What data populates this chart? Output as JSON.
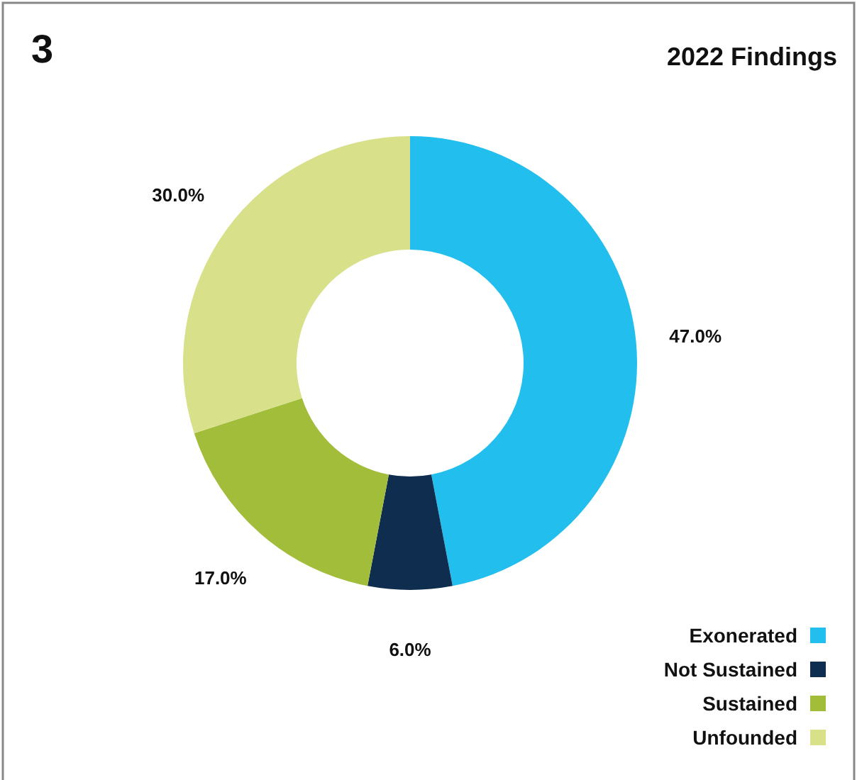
{
  "chart_data": {
    "type": "donut",
    "title": "2022 Findings",
    "annotations": [
      "3"
    ],
    "categories": [
      "Exonerated",
      "Not Sustained",
      "Sustained",
      "Unfounded"
    ],
    "values": [
      47.0,
      6.0,
      17.0,
      30.0
    ],
    "colors": [
      "#22bfee",
      "#0f2d4f",
      "#a2bd3a",
      "#d9e08a"
    ],
    "value_labels": [
      "47.0%",
      "6.0%",
      "17.0%",
      "30.0%"
    ],
    "legend": "bottom right"
  }
}
